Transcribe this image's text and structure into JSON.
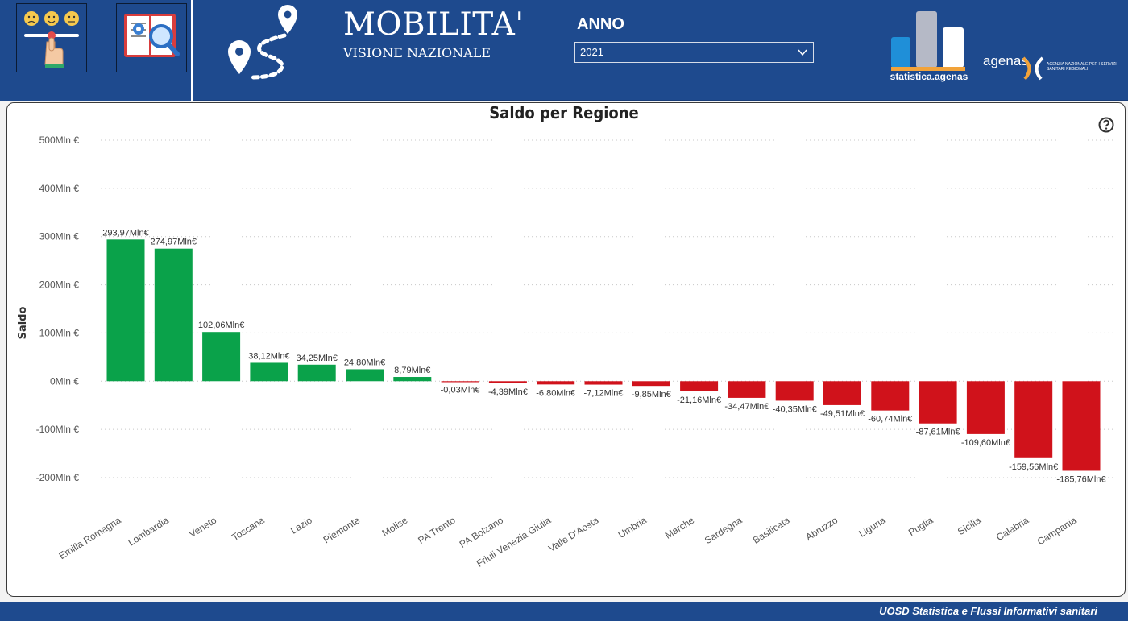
{
  "header": {
    "title": "MOBILITA'",
    "subtitle": "VISIONE NAZIONALE",
    "year_label": "ANNO",
    "year_selected": "2021",
    "stat_logo_text": "statistica.agenas",
    "agenas_text": "agenas",
    "agenas_subtext": "AGENZIA NAZIONALE PER I SERVIZI SANITARI REGIONALI",
    "nav_icons": [
      "feedback-slider-icon",
      "book-search-icon"
    ]
  },
  "colors": {
    "header_bg": "#1e4a8e",
    "positive": "#0aa24a",
    "negative": "#d0121b"
  },
  "chart_data": {
    "type": "bar",
    "title": "Saldo per Regione",
    "ylabel": "Saldo",
    "xlabel": "",
    "ylim": [
      -200,
      500
    ],
    "yticks": [
      500,
      400,
      300,
      200,
      100,
      0,
      -100,
      -200
    ],
    "ytick_labels": [
      "500Mln €",
      "400Mln €",
      "300Mln €",
      "200Mln €",
      "100Mln €",
      "0Mln €",
      "-100Mln €",
      "-200Mln €"
    ],
    "grid": true,
    "categories": [
      "Emilia Romagna",
      "Lombardia",
      "Veneto",
      "Toscana",
      "Lazio",
      "Piemonte",
      "Molise",
      "PA Trento",
      "PA Bolzano",
      "Friuli Venezia Giulia",
      "Valle D'Aosta",
      "Umbria",
      "Marche",
      "Sardegna",
      "Basilicata",
      "Abruzzo",
      "Liguria",
      "Puglia",
      "Sicilia",
      "Calabria",
      "Campania"
    ],
    "values": [
      293.97,
      274.97,
      102.06,
      38.12,
      34.25,
      24.8,
      8.79,
      -0.03,
      -4.39,
      -6.8,
      -7.12,
      -9.85,
      -21.16,
      -34.47,
      -40.35,
      -49.51,
      -60.74,
      -87.61,
      -109.6,
      -159.56,
      -185.76
    ],
    "data_labels": [
      "293,97Mln€",
      "274,97Mln€",
      "102,06Mln€",
      "38,12Mln€",
      "34,25Mln€",
      "24,80Mln€",
      "8,79Mln€",
      "-0,03Mln€",
      "-4,39Mln€",
      "-6,80Mln€",
      "-7,12Mln€",
      "-9,85Mln€",
      "-21,16Mln€",
      "-34,47Mln€",
      "-40,35Mln€",
      "-49,51Mln€",
      "-60,74Mln€",
      "-87,61Mln€",
      "-109,60Mln€",
      "-159,56Mln€",
      "-185,76Mln€"
    ]
  },
  "footer": {
    "text": "UOSD Statistica e Flussi Informativi sanitari"
  }
}
